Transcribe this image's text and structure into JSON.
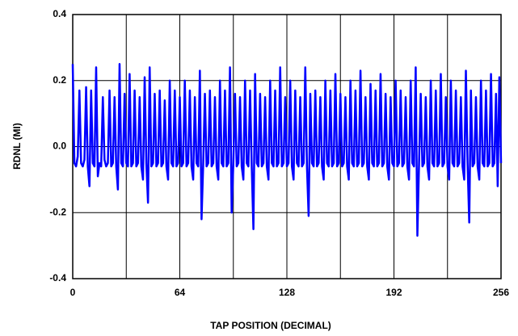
{
  "chart_data": {
    "type": "line",
    "xlabel": "TAP POSITION (DECIMAL)",
    "ylabel": "RDNL (MI)",
    "x": [
      0,
      1,
      2,
      3,
      4,
      5,
      6,
      7,
      8,
      9,
      10,
      11,
      12,
      13,
      14,
      15,
      16,
      17,
      18,
      19,
      20,
      21,
      22,
      23,
      24,
      25,
      26,
      27,
      28,
      29,
      30,
      31,
      32,
      33,
      34,
      35,
      36,
      37,
      38,
      39,
      40,
      41,
      42,
      43,
      44,
      45,
      46,
      47,
      48,
      49,
      50,
      51,
      52,
      53,
      54,
      55,
      56,
      57,
      58,
      59,
      60,
      61,
      62,
      63,
      64,
      65,
      66,
      67,
      68,
      69,
      70,
      71,
      72,
      73,
      74,
      75,
      76,
      77,
      78,
      79,
      80,
      81,
      82,
      83,
      84,
      85,
      86,
      87,
      88,
      89,
      90,
      91,
      92,
      93,
      94,
      95,
      96,
      97,
      98,
      99,
      100,
      101,
      102,
      103,
      104,
      105,
      106,
      107,
      108,
      109,
      110,
      111,
      112,
      113,
      114,
      115,
      116,
      117,
      118,
      119,
      120,
      121,
      122,
      123,
      124,
      125,
      126,
      127,
      128,
      129,
      130,
      131,
      132,
      133,
      134,
      135,
      136,
      137,
      138,
      139,
      140,
      141,
      142,
      143,
      144,
      145,
      146,
      147,
      148,
      149,
      150,
      151,
      152,
      153,
      154,
      155,
      156,
      157,
      158,
      159,
      160,
      161,
      162,
      163,
      164,
      165,
      166,
      167,
      168,
      169,
      170,
      171,
      172,
      173,
      174,
      175,
      176,
      177,
      178,
      179,
      180,
      181,
      182,
      183,
      184,
      185,
      186,
      187,
      188,
      189,
      190,
      191,
      192,
      193,
      194,
      195,
      196,
      197,
      198,
      199,
      200,
      201,
      202,
      203,
      204,
      205,
      206,
      207,
      208,
      209,
      210,
      211,
      212,
      213,
      214,
      215,
      216,
      217,
      218,
      219,
      220,
      221,
      222,
      223,
      224,
      225,
      226,
      227,
      228,
      229,
      230,
      231,
      232,
      233,
      234,
      235,
      236,
      237,
      238,
      239,
      240,
      241,
      242,
      243,
      244,
      245,
      246,
      247,
      248,
      249,
      250,
      251,
      252,
      253,
      254,
      255,
      256
    ],
    "series": [
      {
        "color": "#0000ff",
        "values": [
          0.25,
          -0.05,
          -0.06,
          -0.03,
          0.17,
          -0.05,
          -0.06,
          -0.04,
          0.18,
          -0.06,
          -0.12,
          0.17,
          -0.05,
          -0.06,
          0.24,
          -0.09,
          -0.05,
          -0.06,
          0.15,
          -0.04,
          -0.06,
          -0.05,
          0.17,
          -0.06,
          -0.05,
          0.15,
          -0.06,
          -0.13,
          0.25,
          -0.05,
          -0.06,
          0.16,
          -0.05,
          -0.06,
          0.22,
          -0.06,
          -0.05,
          0.17,
          -0.06,
          -0.05,
          0.15,
          -0.06,
          -0.1,
          0.21,
          -0.05,
          -0.17,
          0.24,
          -0.06,
          -0.05,
          0.16,
          -0.06,
          -0.05,
          0.17,
          -0.06,
          -0.05,
          0.14,
          -0.06,
          -0.1,
          0.2,
          -0.05,
          -0.06,
          0.17,
          -0.06,
          -0.05,
          0.15,
          -0.06,
          -0.05,
          0.2,
          -0.06,
          -0.05,
          0.17,
          -0.06,
          -0.1,
          0.15,
          -0.05,
          -0.06,
          0.23,
          -0.22,
          -0.05,
          0.16,
          -0.06,
          -0.05,
          0.17,
          -0.06,
          -0.05,
          0.15,
          -0.06,
          -0.1,
          0.2,
          -0.05,
          -0.06,
          0.17,
          -0.06,
          -0.05,
          0.24,
          -0.2,
          -0.05,
          0.16,
          -0.06,
          -0.05,
          0.15,
          -0.06,
          -0.1,
          0.2,
          -0.05,
          -0.06,
          0.17,
          -0.06,
          -0.25,
          0.22,
          -0.05,
          -0.06,
          0.16,
          -0.06,
          -0.05,
          0.15,
          -0.06,
          -0.1,
          0.2,
          -0.05,
          -0.06,
          0.17,
          -0.06,
          -0.05,
          0.24,
          -0.06,
          -0.05,
          0.15,
          -0.06,
          -0.05,
          0.2,
          -0.06,
          -0.1,
          0.17,
          -0.05,
          -0.06,
          0.15,
          -0.06,
          -0.05,
          0.24,
          -0.06,
          -0.21,
          0.16,
          -0.05,
          -0.06,
          0.17,
          -0.06,
          -0.05,
          0.15,
          -0.06,
          -0.1,
          0.2,
          -0.05,
          -0.06,
          0.17,
          -0.06,
          -0.05,
          0.22,
          -0.06,
          -0.05,
          0.16,
          -0.06,
          -0.05,
          0.15,
          -0.06,
          -0.1,
          0.2,
          -0.05,
          -0.06,
          0.17,
          -0.06,
          -0.05,
          0.23,
          -0.06,
          -0.05,
          0.15,
          -0.06,
          -0.1,
          0.19,
          -0.05,
          -0.06,
          0.17,
          -0.06,
          -0.05,
          0.22,
          -0.06,
          -0.05,
          0.16,
          -0.06,
          -0.1,
          0.15,
          -0.05,
          -0.06,
          0.2,
          -0.06,
          -0.05,
          0.17,
          -0.06,
          -0.05,
          0.15,
          -0.06,
          -0.1,
          0.2,
          -0.05,
          -0.06,
          0.24,
          -0.27,
          -0.05,
          0.16,
          -0.06,
          -0.05,
          0.15,
          -0.06,
          -0.1,
          0.2,
          -0.05,
          -0.06,
          0.17,
          -0.06,
          -0.05,
          0.22,
          -0.06,
          -0.05,
          0.15,
          -0.06,
          -0.1,
          0.2,
          -0.05,
          -0.06,
          0.17,
          -0.06,
          -0.05,
          0.15,
          -0.06,
          -0.1,
          0.23,
          -0.05,
          -0.23,
          0.17,
          -0.06,
          -0.05,
          0.15,
          -0.06,
          -0.1,
          0.2,
          -0.05,
          -0.06,
          0.17,
          -0.06,
          -0.05,
          0.22,
          -0.06,
          -0.05,
          0.16,
          -0.12,
          0.21,
          -0.05
        ]
      }
    ],
    "xlim": [
      0,
      256
    ],
    "xticks": [
      0,
      64,
      128,
      192,
      256
    ],
    "xgrid": [
      0,
      32,
      64,
      96,
      128,
      160,
      192,
      224,
      256
    ],
    "ylim": [
      -0.4,
      0.4
    ],
    "yticks": [
      -0.4,
      -0.2,
      {
        "value": 0,
        "label": "0.0"
      },
      0.2,
      0.4
    ],
    "grid": true
  }
}
